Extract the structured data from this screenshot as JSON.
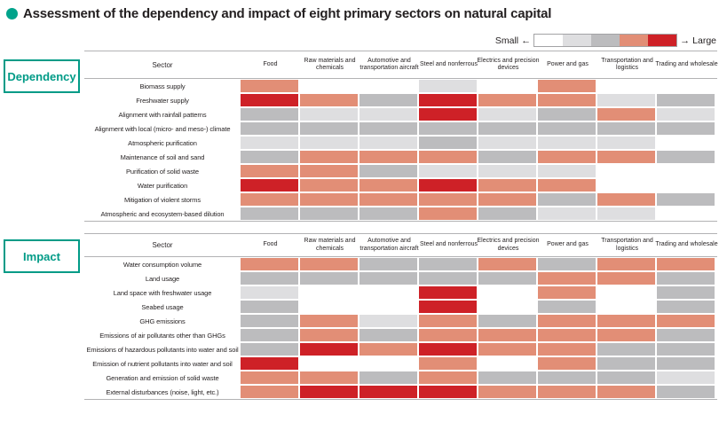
{
  "title": "Assessment of the dependency and impact of eight primary sectors on natural capital",
  "bullet_color": "#00a38b",
  "accent_teal": "#009b87",
  "sector_header": "Sector",
  "palette": [
    "#ffffff",
    "#dedee0",
    "#bcbcbe",
    "#e28e76",
    "#ce2127"
  ],
  "legend": {
    "small_label": "Small",
    "large_label": "Large",
    "arrow_left": "←",
    "arrow_right": "→"
  },
  "chart_data": {
    "type": "heatmap",
    "title": "Assessment of the dependency and impact of eight primary sectors on natural capital",
    "value_scale": "0 = small (white), 1 = light gray, 2 = gray, 3 = salmon, 4 = large (red)",
    "legend": {
      "min_label": "Small",
      "max_label": "Large",
      "position": "top-right"
    },
    "columns": [
      "Food",
      "Raw materials and chemicals",
      "Automotive and transportation aircraft",
      "Steel and nonferrous",
      "Electrics and precision devices",
      "Power and gas",
      "Transportation and logistics",
      "Trading and wholesale"
    ],
    "sections": [
      {
        "name": "Dependency",
        "rows": [
          {
            "label": "Biomass supply",
            "values": [
              3,
              0,
              0,
              1,
              0,
              3,
              0,
              0
            ]
          },
          {
            "label": "Freshwater supply",
            "values": [
              4,
              3,
              2,
              4,
              3,
              3,
              1,
              2
            ]
          },
          {
            "label": "Alignment with rainfall patterns",
            "values": [
              2,
              1,
              1,
              4,
              1,
              2,
              3,
              1
            ]
          },
          {
            "label": "Alignment with local (micro- and meso-) climate",
            "values": [
              2,
              2,
              2,
              2,
              2,
              2,
              2,
              2
            ]
          },
          {
            "label": "Atmospheric purification",
            "values": [
              1,
              1,
              1,
              2,
              1,
              1,
              1,
              0
            ]
          },
          {
            "label": "Maintenance of soil and sand",
            "values": [
              2,
              3,
              3,
              3,
              2,
              3,
              3,
              2
            ]
          },
          {
            "label": "Purification of solid waste",
            "values": [
              3,
              3,
              2,
              1,
              1,
              1,
              0,
              0
            ]
          },
          {
            "label": "Water purification",
            "values": [
              4,
              3,
              3,
              4,
              3,
              3,
              0,
              0
            ]
          },
          {
            "label": "Mitigation of violent storms",
            "values": [
              3,
              3,
              3,
              3,
              3,
              2,
              3,
              2
            ]
          },
          {
            "label": "Atmospheric and ecosystem-based dilution",
            "values": [
              2,
              2,
              2,
              3,
              2,
              1,
              1,
              0
            ]
          }
        ]
      },
      {
        "name": "Impact",
        "rows": [
          {
            "label": "Water consumption volume",
            "values": [
              3,
              3,
              2,
              2,
              3,
              2,
              3,
              3
            ]
          },
          {
            "label": "Land usage",
            "values": [
              2,
              2,
              2,
              2,
              2,
              3,
              3,
              2
            ]
          },
          {
            "label": "Land space with freshwater usage",
            "values": [
              1,
              0,
              0,
              4,
              0,
              3,
              0,
              2
            ]
          },
          {
            "label": "Seabed usage",
            "values": [
              2,
              0,
              0,
              4,
              0,
              2,
              0,
              2
            ]
          },
          {
            "label": "GHG emissions",
            "values": [
              2,
              3,
              1,
              3,
              2,
              3,
              3,
              3
            ]
          },
          {
            "label": "Emissions of air pollutants other than GHGs",
            "values": [
              2,
              3,
              2,
              3,
              3,
              3,
              3,
              2
            ]
          },
          {
            "label": "Emissions of hazardous pollutants into water and soil",
            "values": [
              2,
              4,
              3,
              4,
              3,
              3,
              2,
              2
            ]
          },
          {
            "label": "Emission of nutrient pollutants into water and soil",
            "values": [
              4,
              0,
              0,
              3,
              0,
              3,
              2,
              2
            ]
          },
          {
            "label": "Generation and emission of solid waste",
            "values": [
              3,
              3,
              2,
              3,
              2,
              2,
              2,
              1
            ]
          },
          {
            "label": "External disturbances (noise, light, etc.)",
            "values": [
              3,
              4,
              4,
              4,
              3,
              3,
              3,
              2
            ]
          }
        ]
      }
    ]
  }
}
